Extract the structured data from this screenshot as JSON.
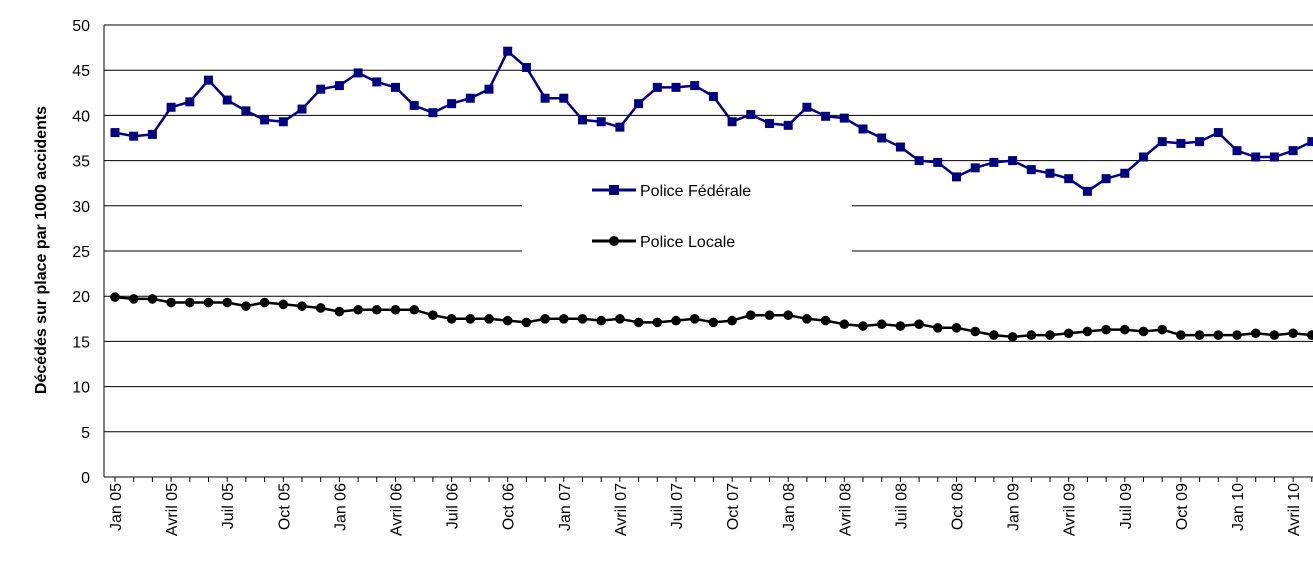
{
  "chart_data": {
    "type": "line",
    "title": "",
    "xlabel": "",
    "ylabel": "Décédés  sur place par 1000 accidents",
    "ylim": [
      0,
      50
    ],
    "yticks": [
      0,
      5,
      10,
      15,
      20,
      25,
      30,
      35,
      40,
      45,
      50
    ],
    "grid": "horizontal",
    "legend_position": "center",
    "tick_labels": [
      "Jan 05",
      "Avril 05",
      "Juil 05",
      "Oct 05",
      "Jan 06",
      "Avril 06",
      "Juil 06",
      "Oct 06",
      "Jan 07",
      "Avril 07",
      "Juil 07",
      "Oct 07",
      "Jan 08",
      "Avril 08",
      "Juil 08",
      "Oct 08",
      "Jan 09",
      "Avril 09",
      "Juil 09",
      "Oct 09",
      "Jan 10",
      "Avril 10"
    ],
    "series": [
      {
        "name": "Police Fédérale",
        "color": "#000080",
        "marker": "square",
        "values": [
          38.1,
          37.7,
          37.9,
          40.9,
          41.5,
          43.9,
          41.7,
          40.5,
          39.5,
          39.3,
          40.7,
          42.9,
          43.3,
          44.7,
          43.7,
          43.1,
          41.1,
          40.3,
          41.3,
          41.9,
          42.9,
          47.1,
          45.3,
          41.9,
          41.9,
          39.5,
          39.3,
          38.7,
          41.3,
          43.1,
          43.1,
          43.3,
          42.1,
          39.3,
          40.1,
          39.1,
          38.9,
          40.9,
          39.9,
          39.7,
          38.5,
          37.5,
          36.5,
          35.0,
          34.8,
          33.2,
          34.2,
          34.8,
          35.0,
          34.0,
          33.6,
          33.0,
          31.6,
          33.0,
          33.6,
          35.4,
          37.1,
          36.9,
          37.1,
          38.1,
          36.1,
          35.4,
          35.4,
          36.1,
          37.1
        ]
      },
      {
        "name": "Police Locale",
        "color": "#000000",
        "marker": "circle",
        "values": [
          19.9,
          19.7,
          19.7,
          19.3,
          19.3,
          19.3,
          19.3,
          18.9,
          19.3,
          19.1,
          18.9,
          18.7,
          18.3,
          18.5,
          18.5,
          18.5,
          18.5,
          17.9,
          17.5,
          17.5,
          17.5,
          17.3,
          17.1,
          17.5,
          17.5,
          17.5,
          17.3,
          17.5,
          17.1,
          17.1,
          17.3,
          17.5,
          17.1,
          17.3,
          17.9,
          17.9,
          17.9,
          17.5,
          17.3,
          16.9,
          16.7,
          16.9,
          16.7,
          16.9,
          16.5,
          16.5,
          16.1,
          15.7,
          15.5,
          15.7,
          15.7,
          15.9,
          16.1,
          16.3,
          16.3,
          16.1,
          16.3,
          15.7,
          15.7,
          15.7,
          15.7,
          15.9,
          15.7,
          15.9,
          15.7
        ]
      }
    ]
  }
}
